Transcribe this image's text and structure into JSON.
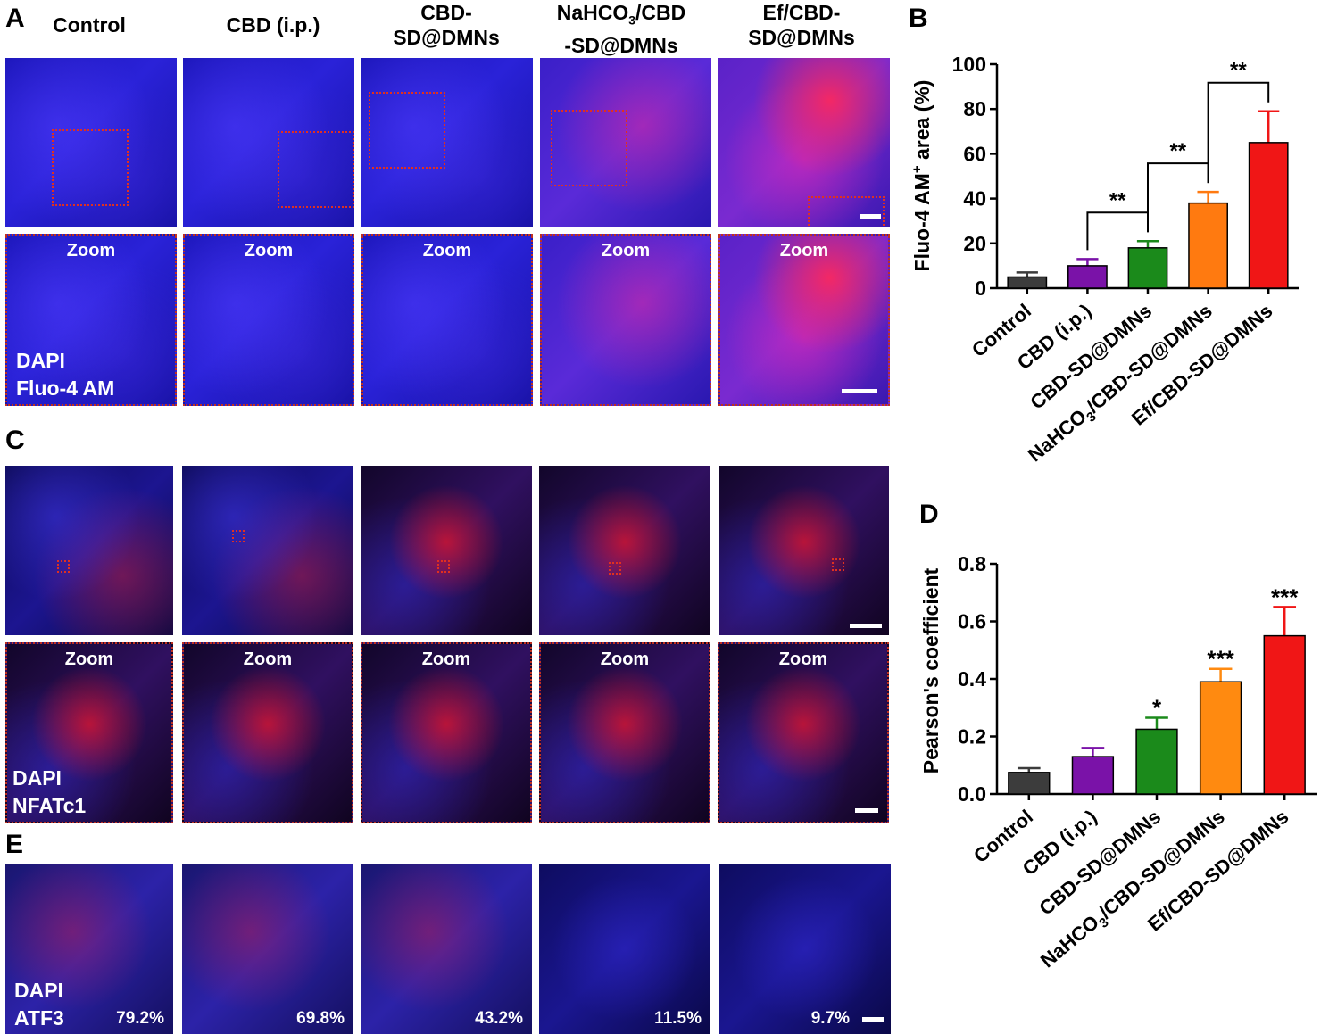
{
  "panels": {
    "A": "A",
    "B": "B",
    "C": "C",
    "D": "D",
    "E": "E"
  },
  "column_titles": {
    "control": "Control",
    "cbd_ip": "CBD (i.p.)",
    "cbd_sd_1": "CBD-",
    "cbd_sd_2": "SD@DMNs",
    "nahco3_1": "NaHCO",
    "nahco3_sub": "3",
    "nahco3_2": "/CBD",
    "nahco3_3": "-SD@DMNs",
    "ef_1": "Ef/CBD-",
    "ef_2": "SD@DMNs"
  },
  "zoom_label": "Zoom",
  "stain_labels": {
    "A": [
      "DAPI",
      "Fluo-4 AM"
    ],
    "C": [
      "DAPI",
      "NFATc1"
    ],
    "E": [
      "DAPI",
      "ATF3"
    ]
  },
  "atf3_percentages": [
    "79.2%",
    "69.8%",
    "43.2%",
    "11.5%",
    "9.7%"
  ],
  "chart_data": [
    {
      "panel": "B",
      "type": "bar",
      "categories": [
        "Control",
        "CBD (i.p.)",
        "CBD-SD@DMNs",
        "NaHCO3/CBD-SD@DMNs",
        "Ef/CBD-SD@DMNs"
      ],
      "values": [
        5,
        10,
        18,
        38,
        65
      ],
      "errors": [
        2,
        3,
        3,
        5,
        14
      ],
      "colors": [
        "#3c3c3c",
        "#7a12a8",
        "#1b8a1b",
        "#ff7a10",
        "#f01616"
      ],
      "ylabel_main": "Fluo-4 AM",
      "ylabel_sup": "+",
      "ylabel_rest": " area (%)",
      "ylim": [
        0,
        100
      ],
      "yticks": [
        "0",
        "20",
        "40",
        "60",
        "80",
        "100"
      ],
      "significance": [
        {
          "from": 1,
          "to": 2,
          "label": "**"
        },
        {
          "from": 2,
          "to": 3,
          "label": "**"
        },
        {
          "from": 3,
          "to": 4,
          "label": "**"
        }
      ]
    },
    {
      "panel": "D",
      "type": "bar",
      "categories": [
        "Control",
        "CBD (i.p.)",
        "CBD-SD@DMNs",
        "NaHCO3/CBD-SD@DMNs",
        "Ef/CBD-SD@DMNs"
      ],
      "values": [
        0.075,
        0.13,
        0.225,
        0.39,
        0.55
      ],
      "errors": [
        0.015,
        0.03,
        0.04,
        0.045,
        0.1
      ],
      "colors": [
        "#3c3c3c",
        "#7a12a8",
        "#1b8a1b",
        "#ff8a10",
        "#f01616"
      ],
      "ylabel": "Pearson's coefficient",
      "ylim": [
        0,
        0.8
      ],
      "yticks": [
        "0.0",
        "0.2",
        "0.4",
        "0.6",
        "0.8"
      ],
      "bar_labels": [
        "",
        "",
        "*",
        "***",
        "***"
      ]
    }
  ]
}
